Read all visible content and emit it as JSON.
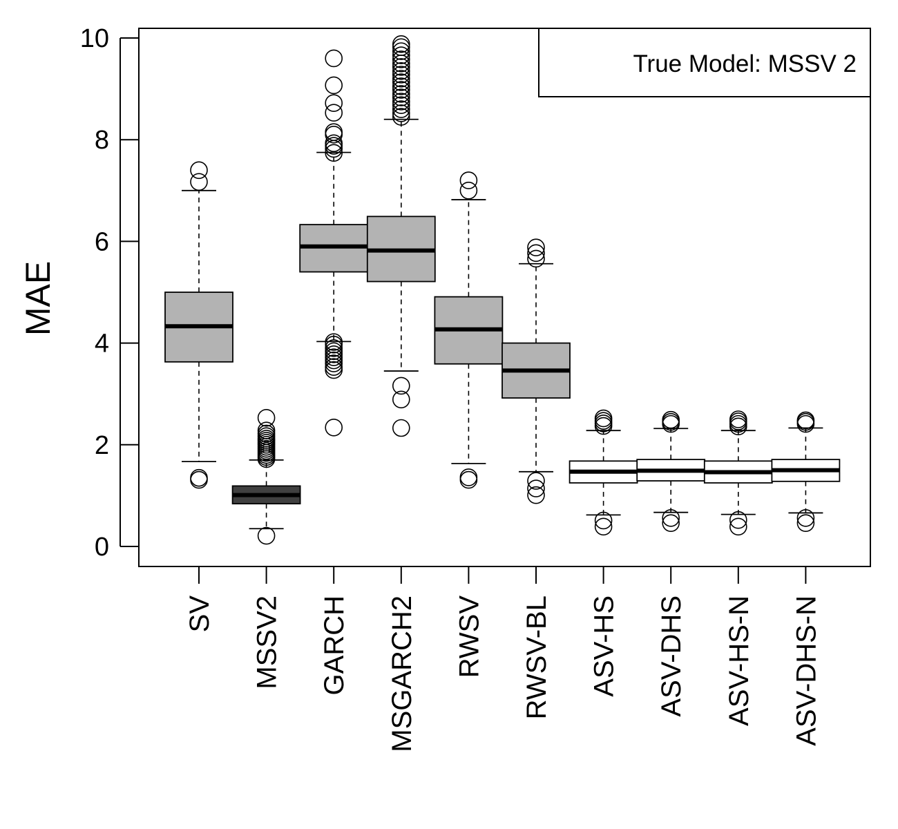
{
  "chart_data": {
    "type": "boxplot",
    "title": "",
    "xlabel": "",
    "ylabel": "MAE",
    "ylim": [
      -0.4,
      10.2
    ],
    "yticks": [
      0,
      2,
      4,
      6,
      8,
      10
    ],
    "legend": {
      "text": "True Model: MSSV 2",
      "position": "top-right"
    },
    "colors": {
      "default": "#b3b3b3",
      "MSSV2": "#404040",
      "ASV": "#ffffff",
      "stroke": "#000000"
    },
    "categories": [
      "SV",
      "MSSV2",
      "GARCH",
      "MSGARCH2",
      "RWSV",
      "RWSV-BL",
      "ASV-HS",
      "ASV-DHS",
      "ASV-HS-N",
      "ASV-DHS-N"
    ],
    "boxes": [
      {
        "name": "SV",
        "fill": "#b3b3b3",
        "whisker_low": 1.67,
        "q1": 3.63,
        "median": 4.33,
        "q3": 5.0,
        "whisker_high": 7.0,
        "outliers": [
          1.31,
          1.35,
          7.17,
          7.4
        ]
      },
      {
        "name": "MSSV2",
        "fill": "#404040",
        "whisker_low": 0.35,
        "q1": 0.84,
        "median": 1.01,
        "q3": 1.19,
        "whisker_high": 1.7,
        "outliers": [
          0.21,
          1.72,
          1.76,
          1.8,
          1.84,
          1.88,
          1.92,
          1.96,
          2.0,
          2.04,
          2.08,
          2.12,
          2.17,
          2.22,
          2.28,
          2.53
        ]
      },
      {
        "name": "GARCH",
        "fill": "#b3b3b3",
        "whisker_low": 4.03,
        "q1": 5.4,
        "median": 5.9,
        "q3": 6.33,
        "whisker_high": 7.75,
        "outliers": [
          2.34,
          3.47,
          3.53,
          3.6,
          3.66,
          3.72,
          3.78,
          3.84,
          3.9,
          3.97,
          4.02,
          7.74,
          7.82,
          7.88,
          7.93,
          8.1,
          8.15,
          8.53,
          8.72,
          9.07,
          9.6
        ]
      },
      {
        "name": "MSGARCH2",
        "fill": "#b3b3b3",
        "whisker_low": 3.45,
        "q1": 5.21,
        "median": 5.82,
        "q3": 6.49,
        "whisker_high": 8.4,
        "outliers": [
          2.33,
          2.89,
          3.16,
          8.45,
          8.52,
          8.6,
          8.68,
          8.75,
          8.83,
          8.9,
          8.98,
          9.05,
          9.13,
          9.2,
          9.28,
          9.35,
          9.43,
          9.5,
          9.58,
          9.66,
          9.74,
          9.82,
          9.88
        ]
      },
      {
        "name": "RWSV",
        "fill": "#b3b3b3",
        "whisker_low": 1.63,
        "q1": 3.59,
        "median": 4.27,
        "q3": 4.91,
        "whisker_high": 6.82,
        "outliers": [
          1.31,
          1.36,
          7.0,
          7.2
        ]
      },
      {
        "name": "RWSV-BL",
        "fill": "#b3b3b3",
        "whisker_low": 1.47,
        "q1": 2.92,
        "median": 3.46,
        "q3": 4.0,
        "whisker_high": 5.56,
        "outliers": [
          1.01,
          1.14,
          1.29,
          5.66,
          5.77,
          5.88
        ]
      },
      {
        "name": "ASV-HS",
        "fill": "#ffffff",
        "whisker_low": 0.62,
        "q1": 1.25,
        "median": 1.47,
        "q3": 1.68,
        "whisker_high": 2.28,
        "outliers": [
          0.39,
          0.51,
          2.37,
          2.42,
          2.47,
          2.52
        ]
      },
      {
        "name": "ASV-DHS",
        "fill": "#ffffff",
        "whisker_low": 0.67,
        "q1": 1.29,
        "median": 1.49,
        "q3": 1.71,
        "whisker_high": 2.32,
        "outliers": [
          0.46,
          0.56,
          2.41,
          2.45,
          2.49
        ]
      },
      {
        "name": "ASV-HS-N",
        "fill": "#ffffff",
        "whisker_low": 0.63,
        "q1": 1.25,
        "median": 1.46,
        "q3": 1.68,
        "whisker_high": 2.28,
        "outliers": [
          0.39,
          0.52,
          2.36,
          2.41,
          2.46,
          2.5
        ]
      },
      {
        "name": "ASV-DHS-N",
        "fill": "#ffffff",
        "whisker_low": 0.66,
        "q1": 1.28,
        "median": 1.5,
        "q3": 1.71,
        "whisker_high": 2.33,
        "outliers": [
          0.46,
          0.56,
          2.41,
          2.45,
          2.48
        ]
      }
    ]
  }
}
